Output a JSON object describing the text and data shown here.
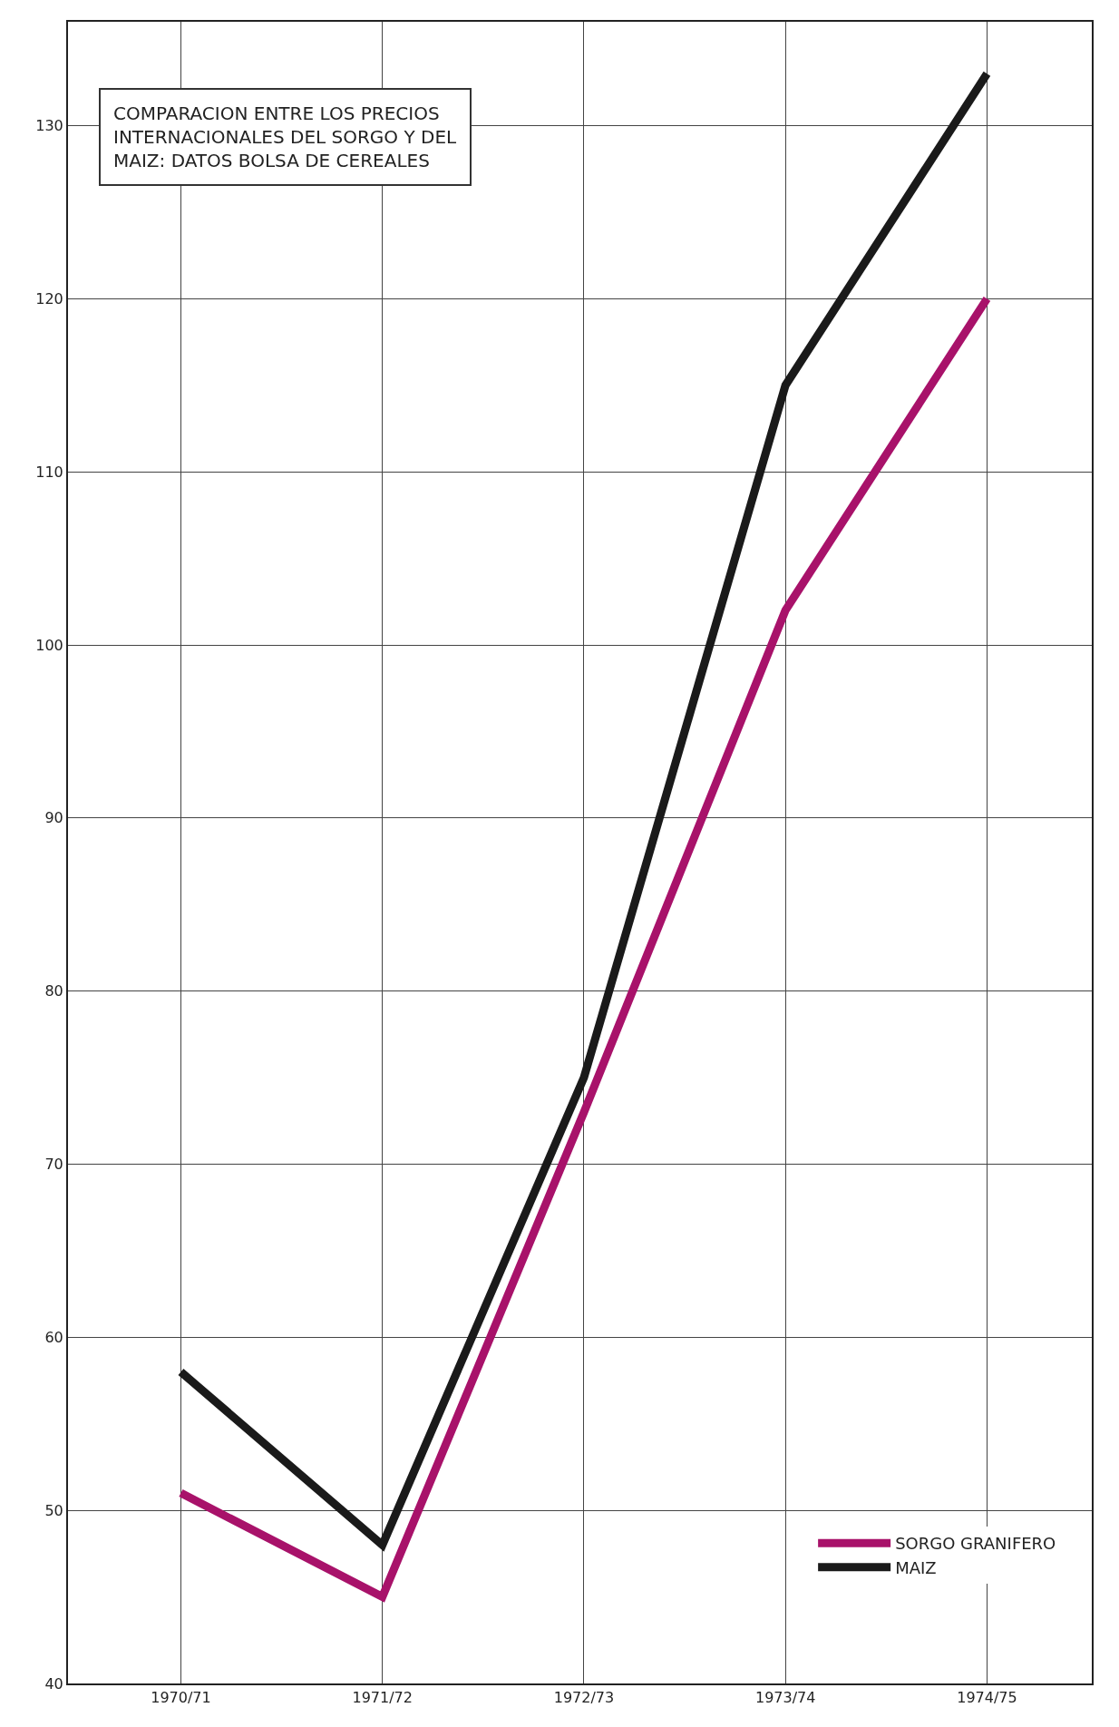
{
  "chart_data": {
    "type": "line",
    "title": "COMPARACION ENTRE LOS PRECIOS INTERNACIONALES DEL SORGO Y DEL MAIZ: DATOS BOLSA DE CEREALES",
    "categories": [
      "1970/71",
      "1971/72",
      "1972/73",
      "1973/74",
      "1974/75"
    ],
    "series": [
      {
        "name": "SORGO GRANIFERO",
        "color": "#a8126a",
        "values": [
          51,
          45,
          73,
          102,
          120
        ]
      },
      {
        "name": "MAIZ",
        "color": "#1a1a1a",
        "values": [
          58,
          48,
          75,
          115,
          133
        ]
      }
    ],
    "ylim": [
      40,
      136
    ],
    "yticks": [
      40,
      50,
      60,
      70,
      80,
      90,
      100,
      110,
      120,
      130
    ],
    "grid": true,
    "legend": "bottom right",
    "marker": "none",
    "line_style": "solid"
  }
}
